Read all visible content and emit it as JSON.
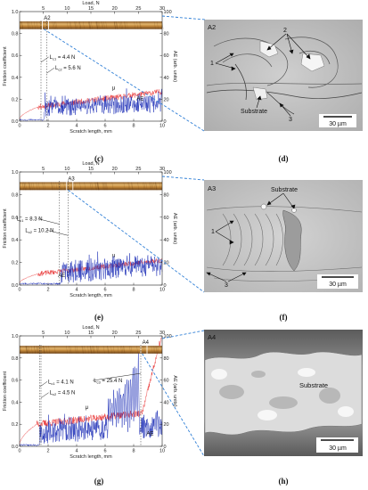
{
  "figure": {
    "panel_labels": [
      "(c)",
      "(d)",
      "(e)",
      "(f)",
      "(g)",
      "(h)"
    ]
  },
  "chart_data": [
    {
      "type": "line",
      "panel": "c",
      "xlabel": "Scratch length, mm",
      "ylabel": "Friction coefficient",
      "y2label": "AE (arb. units)",
      "x2label": "Load, N",
      "xlim": [
        0,
        10
      ],
      "ylim": [
        0,
        1.0
      ],
      "y2lim": [
        0,
        100
      ],
      "x2lim": [
        0,
        30
      ],
      "xticks": [
        "0",
        "2",
        "4",
        "6",
        "8",
        "10"
      ],
      "yticks": [
        "0.0",
        "0.2",
        "0.4",
        "0.6",
        "0.8",
        "1.0"
      ],
      "y2ticks": [
        "0",
        "20",
        "40",
        "60",
        "80",
        "100"
      ],
      "x2ticks": [
        "5",
        "10",
        "15",
        "20",
        "25",
        "30"
      ],
      "track_label": "A2",
      "annotations": [
        {
          "text": "L",
          "sub": "c1",
          "value": " = 4.4 N",
          "x": 1.5
        },
        {
          "text": "L",
          "sub": "c2",
          "value": " = 5.6 N",
          "x": 1.9
        }
      ],
      "series": [
        {
          "name": "μ",
          "color": "#e83030",
          "kind": "friction",
          "start": 0.02,
          "knee": 1.3,
          "knee_val": 0.13,
          "end": 0.27,
          "noise": 0.012
        },
        {
          "name": "AE",
          "color": "#1a2bb5",
          "kind": "ae",
          "onset": 1.7,
          "base": 8,
          "amp": 10,
          "end_base": 13
        }
      ]
    },
    {
      "type": "line",
      "panel": "e",
      "xlabel": "Scratch length, mm",
      "ylabel": "Friction coefficient",
      "y2label": "AE (arb. units)",
      "x2label": "Load, N",
      "xlim": [
        0,
        10
      ],
      "ylim": [
        0,
        1.0
      ],
      "y2lim": [
        0,
        100
      ],
      "x2lim": [
        0,
        30
      ],
      "xticks": [
        "0",
        "2",
        "4",
        "6",
        "8",
        "10"
      ],
      "yticks": [
        "0.0",
        "0.2",
        "0.4",
        "0.6",
        "0.8",
        "1.0"
      ],
      "y2ticks": [
        "0",
        "20",
        "40",
        "60",
        "80",
        "100"
      ],
      "x2ticks": [
        "5",
        "10",
        "15",
        "20",
        "25",
        "30"
      ],
      "track_label": "A3",
      "annotations": [
        {
          "text": "L",
          "sub": "c1",
          "value": " = 8.3 N",
          "x": 2.8
        },
        {
          "text": "L",
          "sub": "c2",
          "value": " = 10.2 N",
          "x": 3.4
        }
      ],
      "series": [
        {
          "name": "μ",
          "color": "#e83030",
          "kind": "friction",
          "start": 0.02,
          "knee": 1.3,
          "knee_val": 0.1,
          "end": 0.22,
          "noise": 0.01
        },
        {
          "name": "AE",
          "color": "#1a2bb5",
          "kind": "ae",
          "onset": 2.9,
          "base": 7,
          "amp": 12,
          "end_base": 14
        }
      ]
    },
    {
      "type": "line",
      "panel": "g",
      "xlabel": "Scratch length, mm",
      "ylabel": "Friction coefficient",
      "y2label": "AE (arb. units)",
      "x2label": "Load, N",
      "xlim": [
        0,
        10
      ],
      "ylim": [
        0,
        1.0
      ],
      "y2lim": [
        0,
        100
      ],
      "x2lim": [
        0,
        30
      ],
      "xticks": [
        "0",
        "2",
        "4",
        "6",
        "8",
        "10"
      ],
      "yticks": [
        "0.0",
        "0.2",
        "0.4",
        "0.6",
        "0.8",
        "1.0"
      ],
      "y2ticks": [
        "0",
        "20",
        "40",
        "60",
        "80",
        "100"
      ],
      "x2ticks": [
        "5",
        "10",
        "15",
        "20",
        "25",
        "30"
      ],
      "track_label": "A4",
      "annotations": [
        {
          "text": "L",
          "sub": "c1",
          "value": " = 4.1 N",
          "x": 1.4
        },
        {
          "text": "L",
          "sub": "c2",
          "value": " = 4.5 N",
          "x": 1.5
        },
        {
          "text": "L",
          "sub": "c3",
          "value": " = 25.4 N",
          "x": 8.5
        }
      ],
      "series": [
        {
          "name": "μ",
          "color": "#e83030",
          "kind": "friction_g",
          "start": 0.02,
          "knee": 1.2,
          "knee_val": 0.2,
          "end": 0.32,
          "noise": 0.015
        },
        {
          "name": "AE",
          "color": "#1a2bb5",
          "kind": "ae_g",
          "onset": 1.4,
          "base": 8,
          "amp": 12,
          "end_base": 14
        }
      ]
    }
  ],
  "micrographs": [
    {
      "panel": "d",
      "label": "A2",
      "scale": "30 µm",
      "notes": [
        "1",
        "2",
        "3",
        "Substrate"
      ]
    },
    {
      "panel": "f",
      "label": "A3",
      "scale": "30 µm",
      "notes": [
        "1",
        "3",
        "Substrate"
      ]
    },
    {
      "panel": "h",
      "label": "A4",
      "scale": "30 µm",
      "notes": [
        "Substrate"
      ]
    }
  ]
}
